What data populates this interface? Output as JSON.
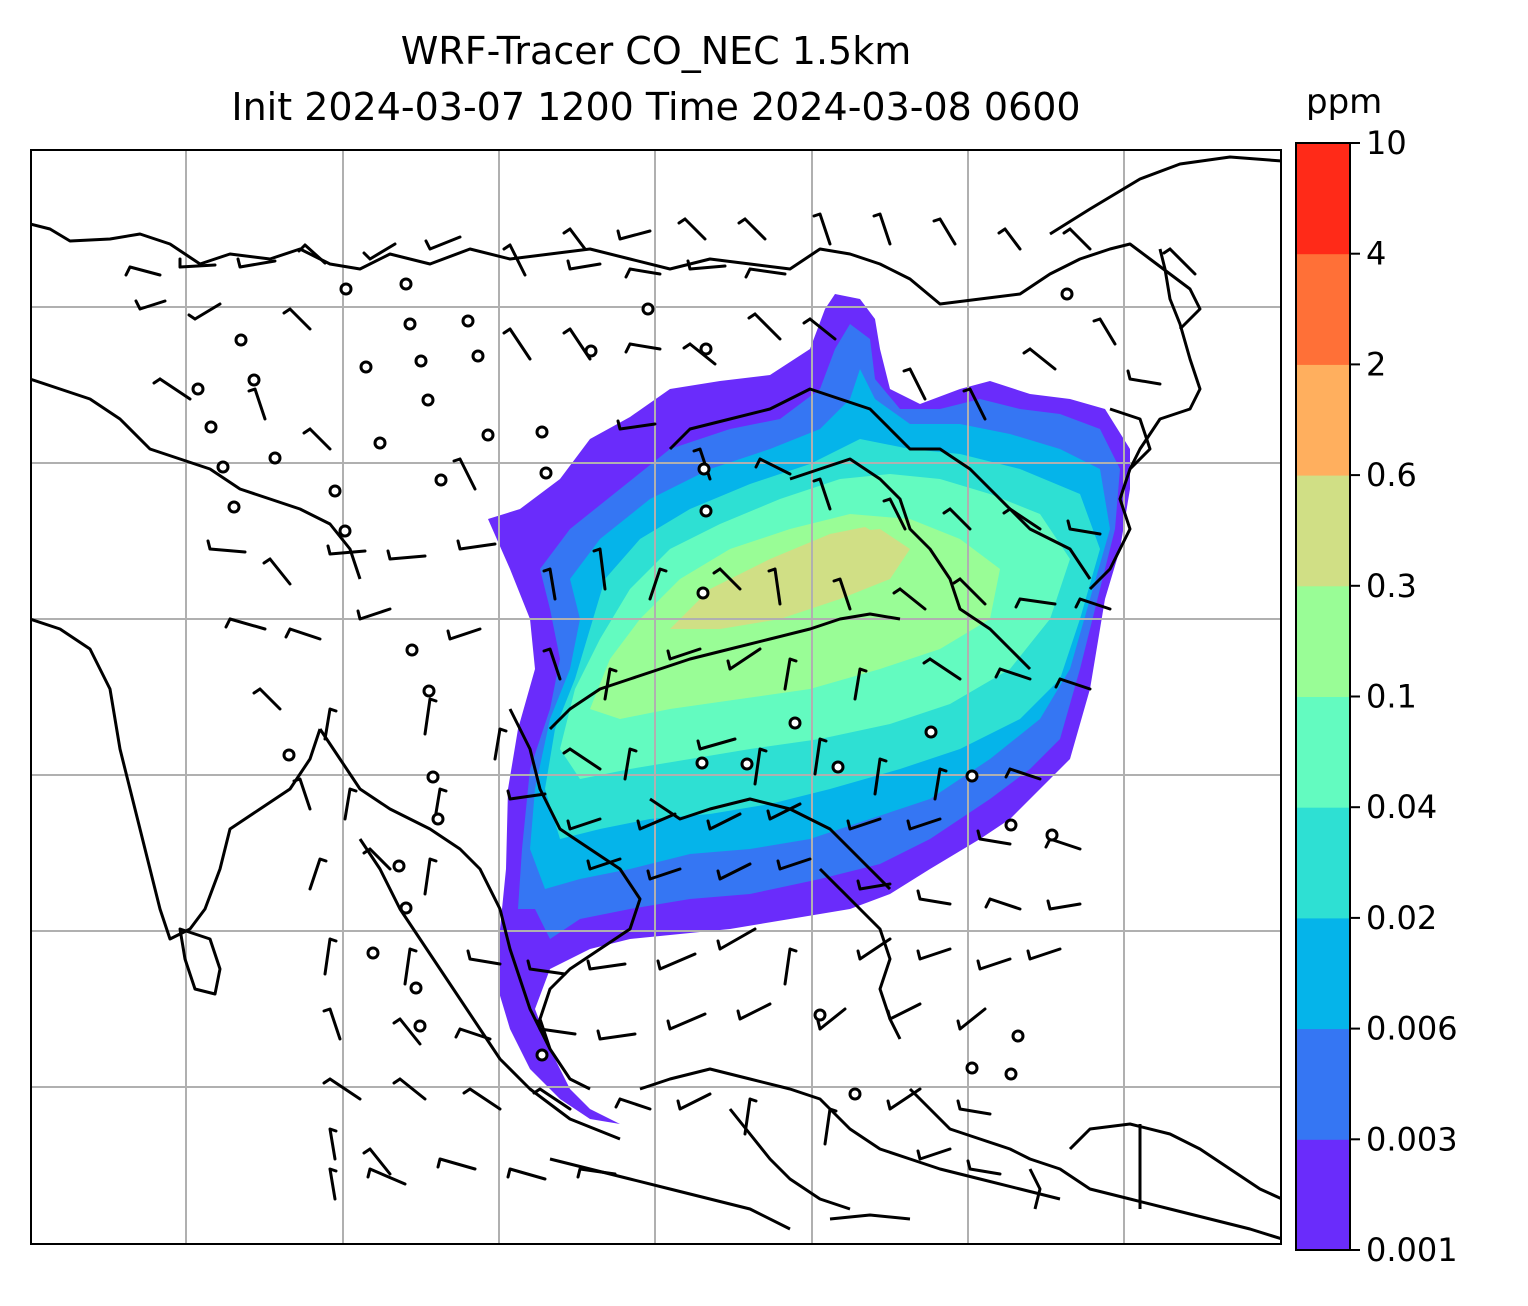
{
  "title_line1": "WRF-Tracer CO_NEC 1.5km",
  "title_line2": "Init 2024-03-07 1200 Time 2024-03-08 0600",
  "colorbar": {
    "units": "ppm",
    "levels": [
      "0.001",
      "0.003",
      "0.006",
      "0.02",
      "0.04",
      "0.1",
      "0.3",
      "0.6",
      "2",
      "4",
      "10"
    ],
    "colors": [
      "#6a2cfb",
      "#3576f3",
      "#05b4ea",
      "#2ee0d3",
      "#63fbc0",
      "#99fd96",
      "#d0df85",
      "#ffaf5e",
      "#ff7037",
      "#ff2a18"
    ]
  },
  "map": {
    "gridlines": true,
    "wind_barbs": true,
    "coastlines": true
  }
}
